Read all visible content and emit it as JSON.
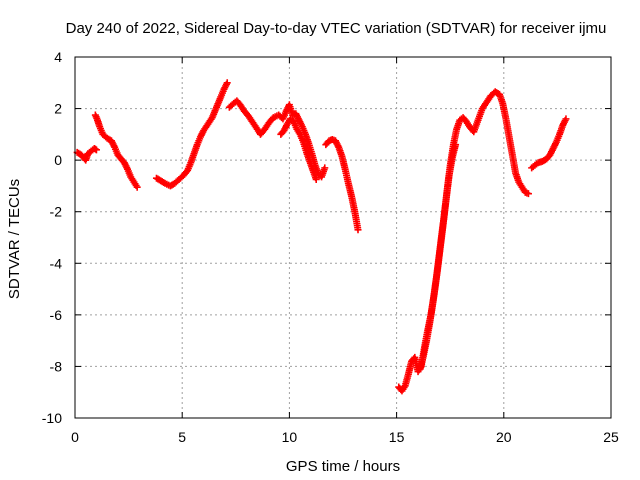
{
  "chart_data": {
    "type": "scatter",
    "title": "Day 240 of 2022, Sidereal Day-to-day VTEC variation (SDTVAR) for receiver ijmu",
    "xlabel": "GPS time / hours",
    "ylabel": "SDTVAR / TECUs",
    "xlim": [
      0,
      25
    ],
    "ylim": [
      -10,
      4
    ],
    "xticks": [
      0,
      5,
      10,
      15,
      20,
      25
    ],
    "yticks": [
      -10,
      -8,
      -6,
      -4,
      -2,
      0,
      2,
      4
    ],
    "xtick_labels": [
      "0",
      "5",
      "10",
      "15",
      "20",
      "25"
    ],
    "ytick_labels": [
      "-10",
      "-8",
      "-6",
      "-4",
      "-2",
      "0",
      "2",
      "4"
    ],
    "grid": true,
    "marker": "plus",
    "color": "#ff0000",
    "series": [
      {
        "name": "segment-1",
        "x": [
          0.1,
          0.3,
          0.5,
          0.6,
          0.75,
          0.9,
          1.0
        ],
        "y": [
          0.3,
          0.2,
          0.0,
          0.25,
          0.35,
          0.45,
          0.4
        ]
      },
      {
        "name": "segment-2",
        "x": [
          0.95,
          1.05,
          1.15,
          1.3,
          1.5,
          1.7,
          1.85,
          2.0,
          2.15,
          2.3,
          2.45,
          2.6,
          2.75,
          2.9
        ],
        "y": [
          1.75,
          1.55,
          1.3,
          1.0,
          0.85,
          0.75,
          0.5,
          0.2,
          0.05,
          -0.1,
          -0.35,
          -0.65,
          -0.85,
          -1.05
        ]
      },
      {
        "name": "segment-3",
        "x": [
          3.8,
          4.0,
          4.2,
          4.45,
          4.65,
          4.85,
          5.05,
          5.25,
          5.4,
          5.55,
          5.7,
          5.85,
          6.0,
          6.2,
          6.4,
          6.6,
          6.8,
          6.95,
          7.1
        ],
        "y": [
          -0.7,
          -0.8,
          -0.9,
          -1.0,
          -0.9,
          -0.75,
          -0.6,
          -0.4,
          -0.1,
          0.25,
          0.6,
          0.9,
          1.15,
          1.4,
          1.65,
          2.05,
          2.45,
          2.75,
          3.0
        ]
      },
      {
        "name": "segment-4",
        "x": [
          7.2,
          7.4,
          7.55,
          7.7,
          7.9,
          8.1,
          8.3,
          8.5,
          8.65,
          8.85,
          9.05,
          9.25,
          9.5,
          9.7,
          9.85,
          10.0,
          10.15,
          10.3,
          10.45,
          10.6,
          10.75,
          10.9,
          11.05,
          11.2,
          11.35,
          11.5,
          11.65
        ],
        "y": [
          2.05,
          2.2,
          2.3,
          2.15,
          1.9,
          1.7,
          1.45,
          1.2,
          1.0,
          1.2,
          1.45,
          1.65,
          1.75,
          1.6,
          1.9,
          2.15,
          1.75,
          1.8,
          1.55,
          1.3,
          1.0,
          0.65,
          0.25,
          -0.2,
          -0.55,
          -0.65,
          -0.3
        ]
      },
      {
        "name": "segment-5",
        "x": [
          9.6,
          9.75,
          9.9,
          10.05,
          10.2,
          10.35,
          10.5,
          10.65,
          10.8,
          10.95,
          11.1,
          11.25
        ],
        "y": [
          1.0,
          1.15,
          1.4,
          1.6,
          1.5,
          1.2,
          1.0,
          0.7,
          0.3,
          -0.05,
          -0.4,
          -0.75
        ]
      },
      {
        "name": "segment-6",
        "x": [
          11.7,
          11.85,
          12.0,
          12.15,
          12.3,
          12.45,
          12.6,
          12.75,
          12.9,
          13.05,
          13.2
        ],
        "y": [
          0.6,
          0.75,
          0.8,
          0.75,
          0.5,
          0.15,
          -0.35,
          -0.9,
          -1.4,
          -2.0,
          -2.7
        ]
      },
      {
        "name": "segment-7",
        "x": [
          15.1,
          15.25,
          15.4,
          15.55,
          15.7,
          15.85,
          16.0,
          16.15,
          16.3,
          16.45,
          16.6,
          16.75,
          16.9,
          17.05,
          17.2,
          17.35,
          17.5,
          17.65,
          17.8,
          17.95,
          18.1,
          18.25,
          18.4,
          18.6,
          18.8,
          19.0,
          19.2,
          19.4,
          19.6,
          19.8,
          19.95,
          20.1,
          20.25,
          20.4,
          20.55,
          20.7,
          20.85,
          21.0,
          21.15
        ],
        "y": [
          -8.8,
          -8.95,
          -8.75,
          -8.3,
          -7.8,
          -7.65,
          -8.2,
          -8.0,
          -7.25,
          -6.6,
          -6.0,
          -5.2,
          -4.3,
          -3.3,
          -2.3,
          -1.2,
          -0.2,
          0.6,
          1.2,
          1.55,
          1.65,
          1.5,
          1.3,
          1.1,
          1.55,
          2.0,
          2.25,
          2.5,
          2.65,
          2.55,
          2.2,
          1.6,
          0.9,
          0.2,
          -0.5,
          -0.85,
          -1.05,
          -1.25,
          -1.3
        ]
      },
      {
        "name": "segment-8",
        "x": [
          16.1,
          16.25,
          16.4,
          16.55,
          16.7,
          16.85,
          17.0,
          17.15,
          17.3,
          17.45,
          17.6,
          17.75
        ],
        "y": [
          -8.1,
          -7.6,
          -7.0,
          -6.3,
          -5.5,
          -4.6,
          -3.6,
          -2.6,
          -1.6,
          -0.6,
          0.1,
          0.6
        ]
      },
      {
        "name": "segment-9",
        "x": [
          21.3,
          21.45,
          21.6,
          21.8,
          22.0,
          22.15,
          22.3,
          22.45,
          22.6,
          22.75,
          22.9
        ],
        "y": [
          -0.3,
          -0.2,
          -0.1,
          -0.05,
          0.05,
          0.2,
          0.45,
          0.7,
          1.0,
          1.35,
          1.6
        ]
      }
    ]
  }
}
